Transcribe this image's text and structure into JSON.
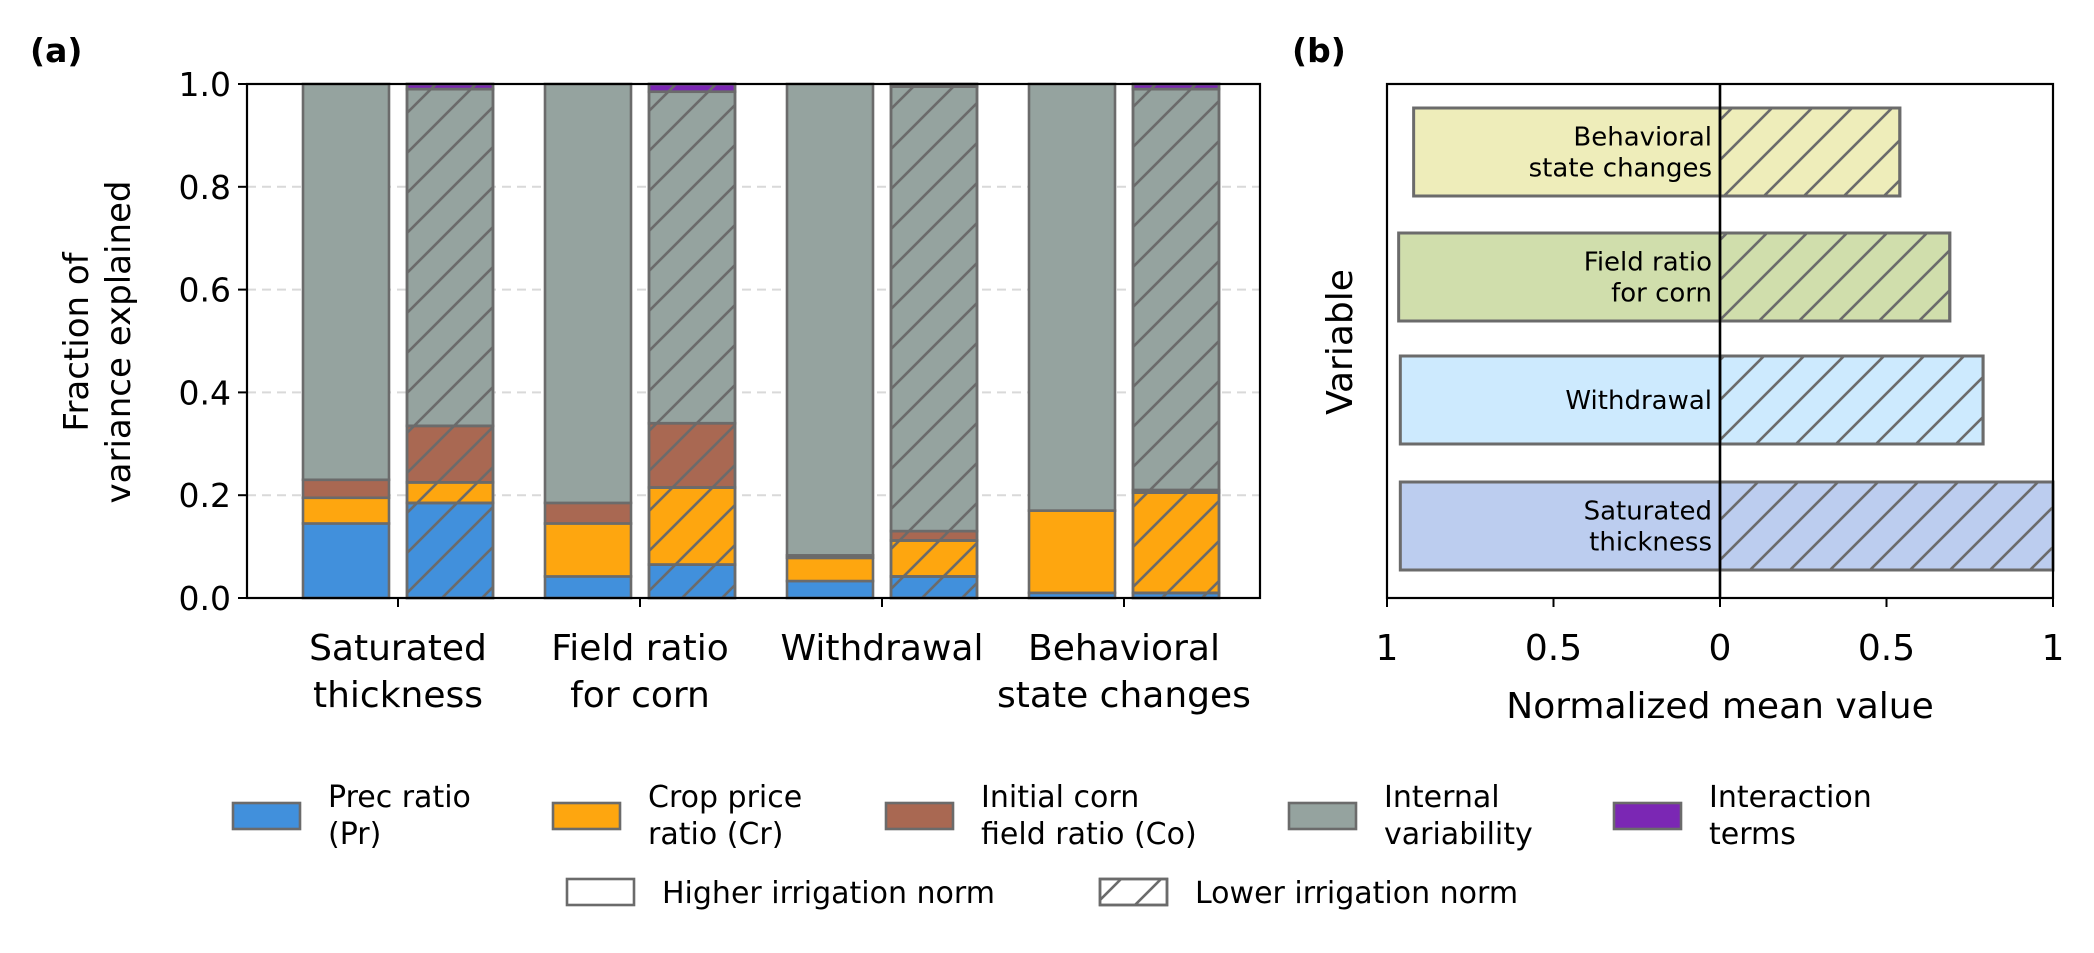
{
  "colors": {
    "prec": "#4190dc",
    "crop": "#fea60f",
    "corn": "#a96852",
    "internal": "#95a39f",
    "interaction": "#7b27b4",
    "edge": "#6b6b6b",
    "grid": "#d9d9d9",
    "b_saturated": "#bccdef",
    "b_withdrawal": "#cdeafe",
    "b_field": "#d0deac",
    "b_behavioral": "#eeedba"
  },
  "chart_data": [
    {
      "panel_label": "(a)",
      "type": "bar",
      "stacked": true,
      "ylabel": [
        "Fraction of",
        "variance explained"
      ],
      "ylim": [
        0,
        1.0
      ],
      "yticks": [
        "0.0",
        "0.2",
        "0.4",
        "0.6",
        "0.8",
        "1.0"
      ],
      "grid": "horizontal dashed",
      "categories": [
        [
          "Saturated",
          "thickness"
        ],
        [
          "Field ratio",
          "for corn"
        ],
        [
          "Withdrawal"
        ],
        [
          "Behavioral",
          "state changes"
        ]
      ],
      "component_order": [
        "prec",
        "crop",
        "corn",
        "internal",
        "interaction"
      ],
      "groups": [
        {
          "higher": {
            "prec": 0.145,
            "crop": 0.05,
            "corn": 0.035,
            "internal": 0.77,
            "interaction": 0.0
          },
          "lower": {
            "prec": 0.185,
            "crop": 0.04,
            "corn": 0.11,
            "internal": 0.655,
            "interaction": 0.01
          }
        },
        {
          "higher": {
            "prec": 0.042,
            "crop": 0.103,
            "corn": 0.04,
            "internal": 0.815,
            "interaction": 0.0
          },
          "lower": {
            "prec": 0.065,
            "crop": 0.15,
            "corn": 0.125,
            "internal": 0.645,
            "interaction": 0.015
          }
        },
        {
          "higher": {
            "prec": 0.033,
            "crop": 0.045,
            "corn": 0.005,
            "internal": 0.917,
            "interaction": 0.0
          },
          "lower": {
            "prec": 0.042,
            "crop": 0.07,
            "corn": 0.018,
            "internal": 0.865,
            "interaction": 0.005
          }
        },
        {
          "higher": {
            "prec": 0.01,
            "crop": 0.16,
            "corn": 0.0,
            "internal": 0.83,
            "interaction": 0.0
          },
          "lower": {
            "prec": 0.01,
            "crop": 0.195,
            "corn": 0.005,
            "internal": 0.78,
            "interaction": 0.01
          }
        }
      ]
    },
    {
      "panel_label": "(b)",
      "type": "bar",
      "orientation": "horizontal",
      "xlabel": "Normalized mean value",
      "ylabel": "Variable",
      "xlim": [
        -1,
        1
      ],
      "xticks": [
        "1",
        "0.5",
        "0",
        "0.5",
        "1"
      ],
      "bars": [
        {
          "label": [
            "Saturated",
            "thickness"
          ],
          "higher": 0.96,
          "lower": 1.0,
          "color_key": "b_saturated"
        },
        {
          "label": [
            "Withdrawal"
          ],
          "higher": 0.96,
          "lower": 0.79,
          "color_key": "b_withdrawal"
        },
        {
          "label": [
            "Field ratio",
            "for corn"
          ],
          "higher": 0.965,
          "lower": 0.69,
          "color_key": "b_field"
        },
        {
          "label": [
            "Behavioral",
            "state changes"
          ],
          "higher": 0.92,
          "lower": 0.54,
          "color_key": "b_behavioral"
        }
      ]
    }
  ],
  "legend": {
    "components": [
      {
        "key": "prec",
        "label": [
          "Prec ratio",
          "(Pr)"
        ]
      },
      {
        "key": "crop",
        "label": [
          "Crop price",
          "ratio (Cr)"
        ]
      },
      {
        "key": "corn",
        "label": [
          "Initial corn",
          "field ratio (Co)"
        ]
      },
      {
        "key": "internal",
        "label": [
          "Internal",
          "variability"
        ]
      },
      {
        "key": "interaction",
        "label": [
          "Interaction",
          "terms"
        ]
      }
    ],
    "norms": [
      {
        "key": "higher",
        "label": "Higher irrigation norm"
      },
      {
        "key": "lower",
        "label": "Lower irrigation norm"
      }
    ]
  }
}
